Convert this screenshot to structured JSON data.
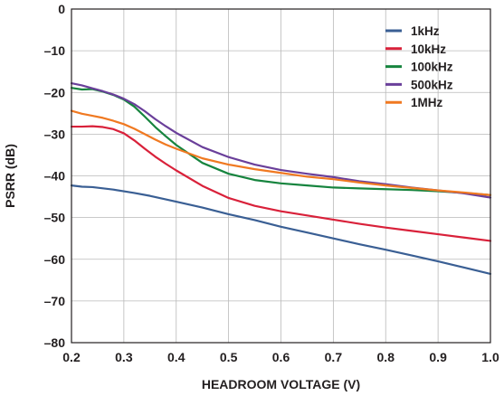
{
  "chart_data": {
    "type": "line",
    "xlabel": "HEADROOM VOLTAGE (V)",
    "ylabel": "PSRR (dB)",
    "xlim": [
      0.2,
      1.0
    ],
    "ylim": [
      -80,
      0
    ],
    "x_ticks": [
      0.2,
      0.3,
      0.4,
      0.5,
      0.6,
      0.7,
      0.8,
      0.9,
      1.0
    ],
    "x_tick_labels": [
      "0.2",
      "0.3",
      "0.4",
      "0.5",
      "0.6",
      "0.7",
      "0.8",
      "0.9",
      "1.0"
    ],
    "y_ticks": [
      0,
      -10,
      -20,
      -30,
      -40,
      -50,
      -60,
      -70,
      -80
    ],
    "y_tick_labels": [
      "0",
      "–10",
      "–20",
      "–30",
      "–40",
      "–50",
      "–60",
      "–70",
      "–80"
    ],
    "grid": true,
    "legend_position": "top-right",
    "series": [
      {
        "name": "1kHz",
        "color": "#3a5f94",
        "x": [
          0.2,
          0.22,
          0.24,
          0.26,
          0.28,
          0.3,
          0.32,
          0.35,
          0.4,
          0.45,
          0.5,
          0.55,
          0.6,
          0.65,
          0.7,
          0.75,
          0.8,
          0.85,
          0.9,
          0.95,
          1.0
        ],
        "y": [
          -42.3,
          -42.6,
          -42.7,
          -43.0,
          -43.3,
          -43.7,
          -44.1,
          -44.8,
          -46.2,
          -47.6,
          -49.2,
          -50.6,
          -52.2,
          -53.6,
          -55.0,
          -56.4,
          -57.7,
          -59.1,
          -60.5,
          -62.0,
          -63.5
        ]
      },
      {
        "name": "10kHz",
        "color": "#d9213a",
        "x": [
          0.2,
          0.22,
          0.24,
          0.26,
          0.28,
          0.3,
          0.32,
          0.34,
          0.36,
          0.38,
          0.4,
          0.45,
          0.5,
          0.55,
          0.6,
          0.65,
          0.7,
          0.75,
          0.8,
          0.85,
          0.9,
          0.95,
          1.0
        ],
        "y": [
          -28.2,
          -28.2,
          -28.1,
          -28.3,
          -28.8,
          -29.8,
          -31.5,
          -33.5,
          -35.4,
          -37.1,
          -38.7,
          -42.4,
          -45.3,
          -47.2,
          -48.5,
          -49.5,
          -50.5,
          -51.5,
          -52.4,
          -53.2,
          -54.0,
          -54.8,
          -55.6
        ]
      },
      {
        "name": "100kHz",
        "color": "#16843e",
        "x": [
          0.2,
          0.22,
          0.24,
          0.26,
          0.28,
          0.3,
          0.32,
          0.34,
          0.36,
          0.38,
          0.4,
          0.45,
          0.5,
          0.55,
          0.6,
          0.65,
          0.7,
          0.75,
          0.8,
          0.85,
          0.9,
          0.95,
          1.0
        ],
        "y": [
          -18.9,
          -19.3,
          -19.2,
          -19.8,
          -20.6,
          -21.7,
          -23.4,
          -25.8,
          -28.3,
          -30.5,
          -32.6,
          -36.9,
          -39.5,
          -41.0,
          -41.8,
          -42.3,
          -42.8,
          -43.0,
          -43.2,
          -43.4,
          -43.7,
          -44.1,
          -44.6
        ]
      },
      {
        "name": "500kHz",
        "color": "#6a3f9a",
        "x": [
          0.2,
          0.22,
          0.24,
          0.26,
          0.28,
          0.3,
          0.32,
          0.34,
          0.36,
          0.38,
          0.4,
          0.45,
          0.5,
          0.55,
          0.6,
          0.65,
          0.7,
          0.75,
          0.8,
          0.85,
          0.9,
          0.95,
          1.0
        ],
        "y": [
          -17.8,
          -18.3,
          -19.0,
          -19.7,
          -20.5,
          -21.5,
          -22.8,
          -24.5,
          -26.4,
          -28.1,
          -29.7,
          -33.1,
          -35.5,
          -37.3,
          -38.6,
          -39.5,
          -40.3,
          -41.3,
          -42.0,
          -42.8,
          -43.5,
          -44.2,
          -45.2
        ]
      },
      {
        "name": "1MHz",
        "color": "#f07921",
        "x": [
          0.2,
          0.22,
          0.24,
          0.26,
          0.28,
          0.3,
          0.32,
          0.34,
          0.36,
          0.38,
          0.4,
          0.45,
          0.5,
          0.55,
          0.6,
          0.65,
          0.7,
          0.75,
          0.8,
          0.85,
          0.9,
          0.95,
          1.0
        ],
        "y": [
          -24.4,
          -25.1,
          -25.6,
          -26.1,
          -26.8,
          -27.6,
          -28.7,
          -30.0,
          -31.3,
          -32.5,
          -33.5,
          -35.8,
          -37.3,
          -38.4,
          -39.3,
          -40.2,
          -40.8,
          -41.6,
          -42.3,
          -42.9,
          -43.5,
          -44.0,
          -44.6
        ]
      }
    ]
  }
}
